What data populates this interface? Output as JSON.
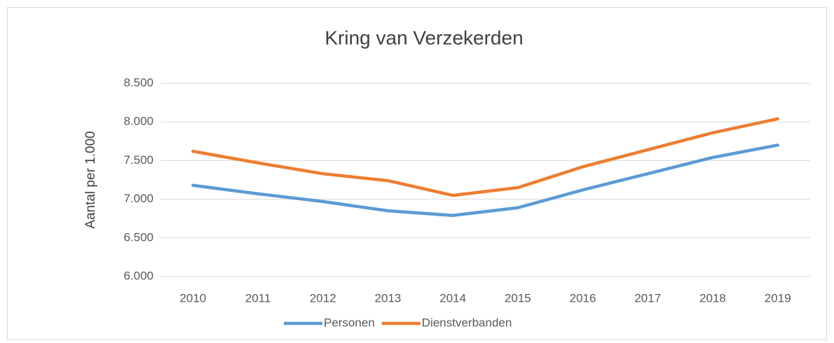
{
  "chart_data": {
    "type": "line",
    "title": "Kring van Verzekerden",
    "y_label": "Aantal per 1.000",
    "categories": [
      "2010",
      "2011",
      "2012",
      "2013",
      "2014",
      "2015",
      "2016",
      "2017",
      "2018",
      "2019"
    ],
    "series": [
      {
        "name": "Personen",
        "color": "#5b9bd5",
        "values": [
          7180,
          7070,
          6970,
          6850,
          6790,
          6890,
          7120,
          7330,
          7540,
          7700
        ]
      },
      {
        "name": "Dienstverbanden",
        "color": "#ed7d31",
        "values": [
          7620,
          7470,
          7330,
          7240,
          7050,
          7150,
          7420,
          7640,
          7860,
          8040
        ]
      }
    ],
    "ylim": [
      6000,
      8500
    ],
    "yticks": [
      {
        "value": 6000,
        "label": "6.000"
      },
      {
        "value": 6500,
        "label": "6.500"
      },
      {
        "value": 7000,
        "label": "7.000"
      },
      {
        "value": 7500,
        "label": "7.500"
      },
      {
        "value": 8000,
        "label": "8.000"
      },
      {
        "value": 8500,
        "label": "8.500"
      }
    ],
    "grid": true,
    "legend": "bottom"
  }
}
